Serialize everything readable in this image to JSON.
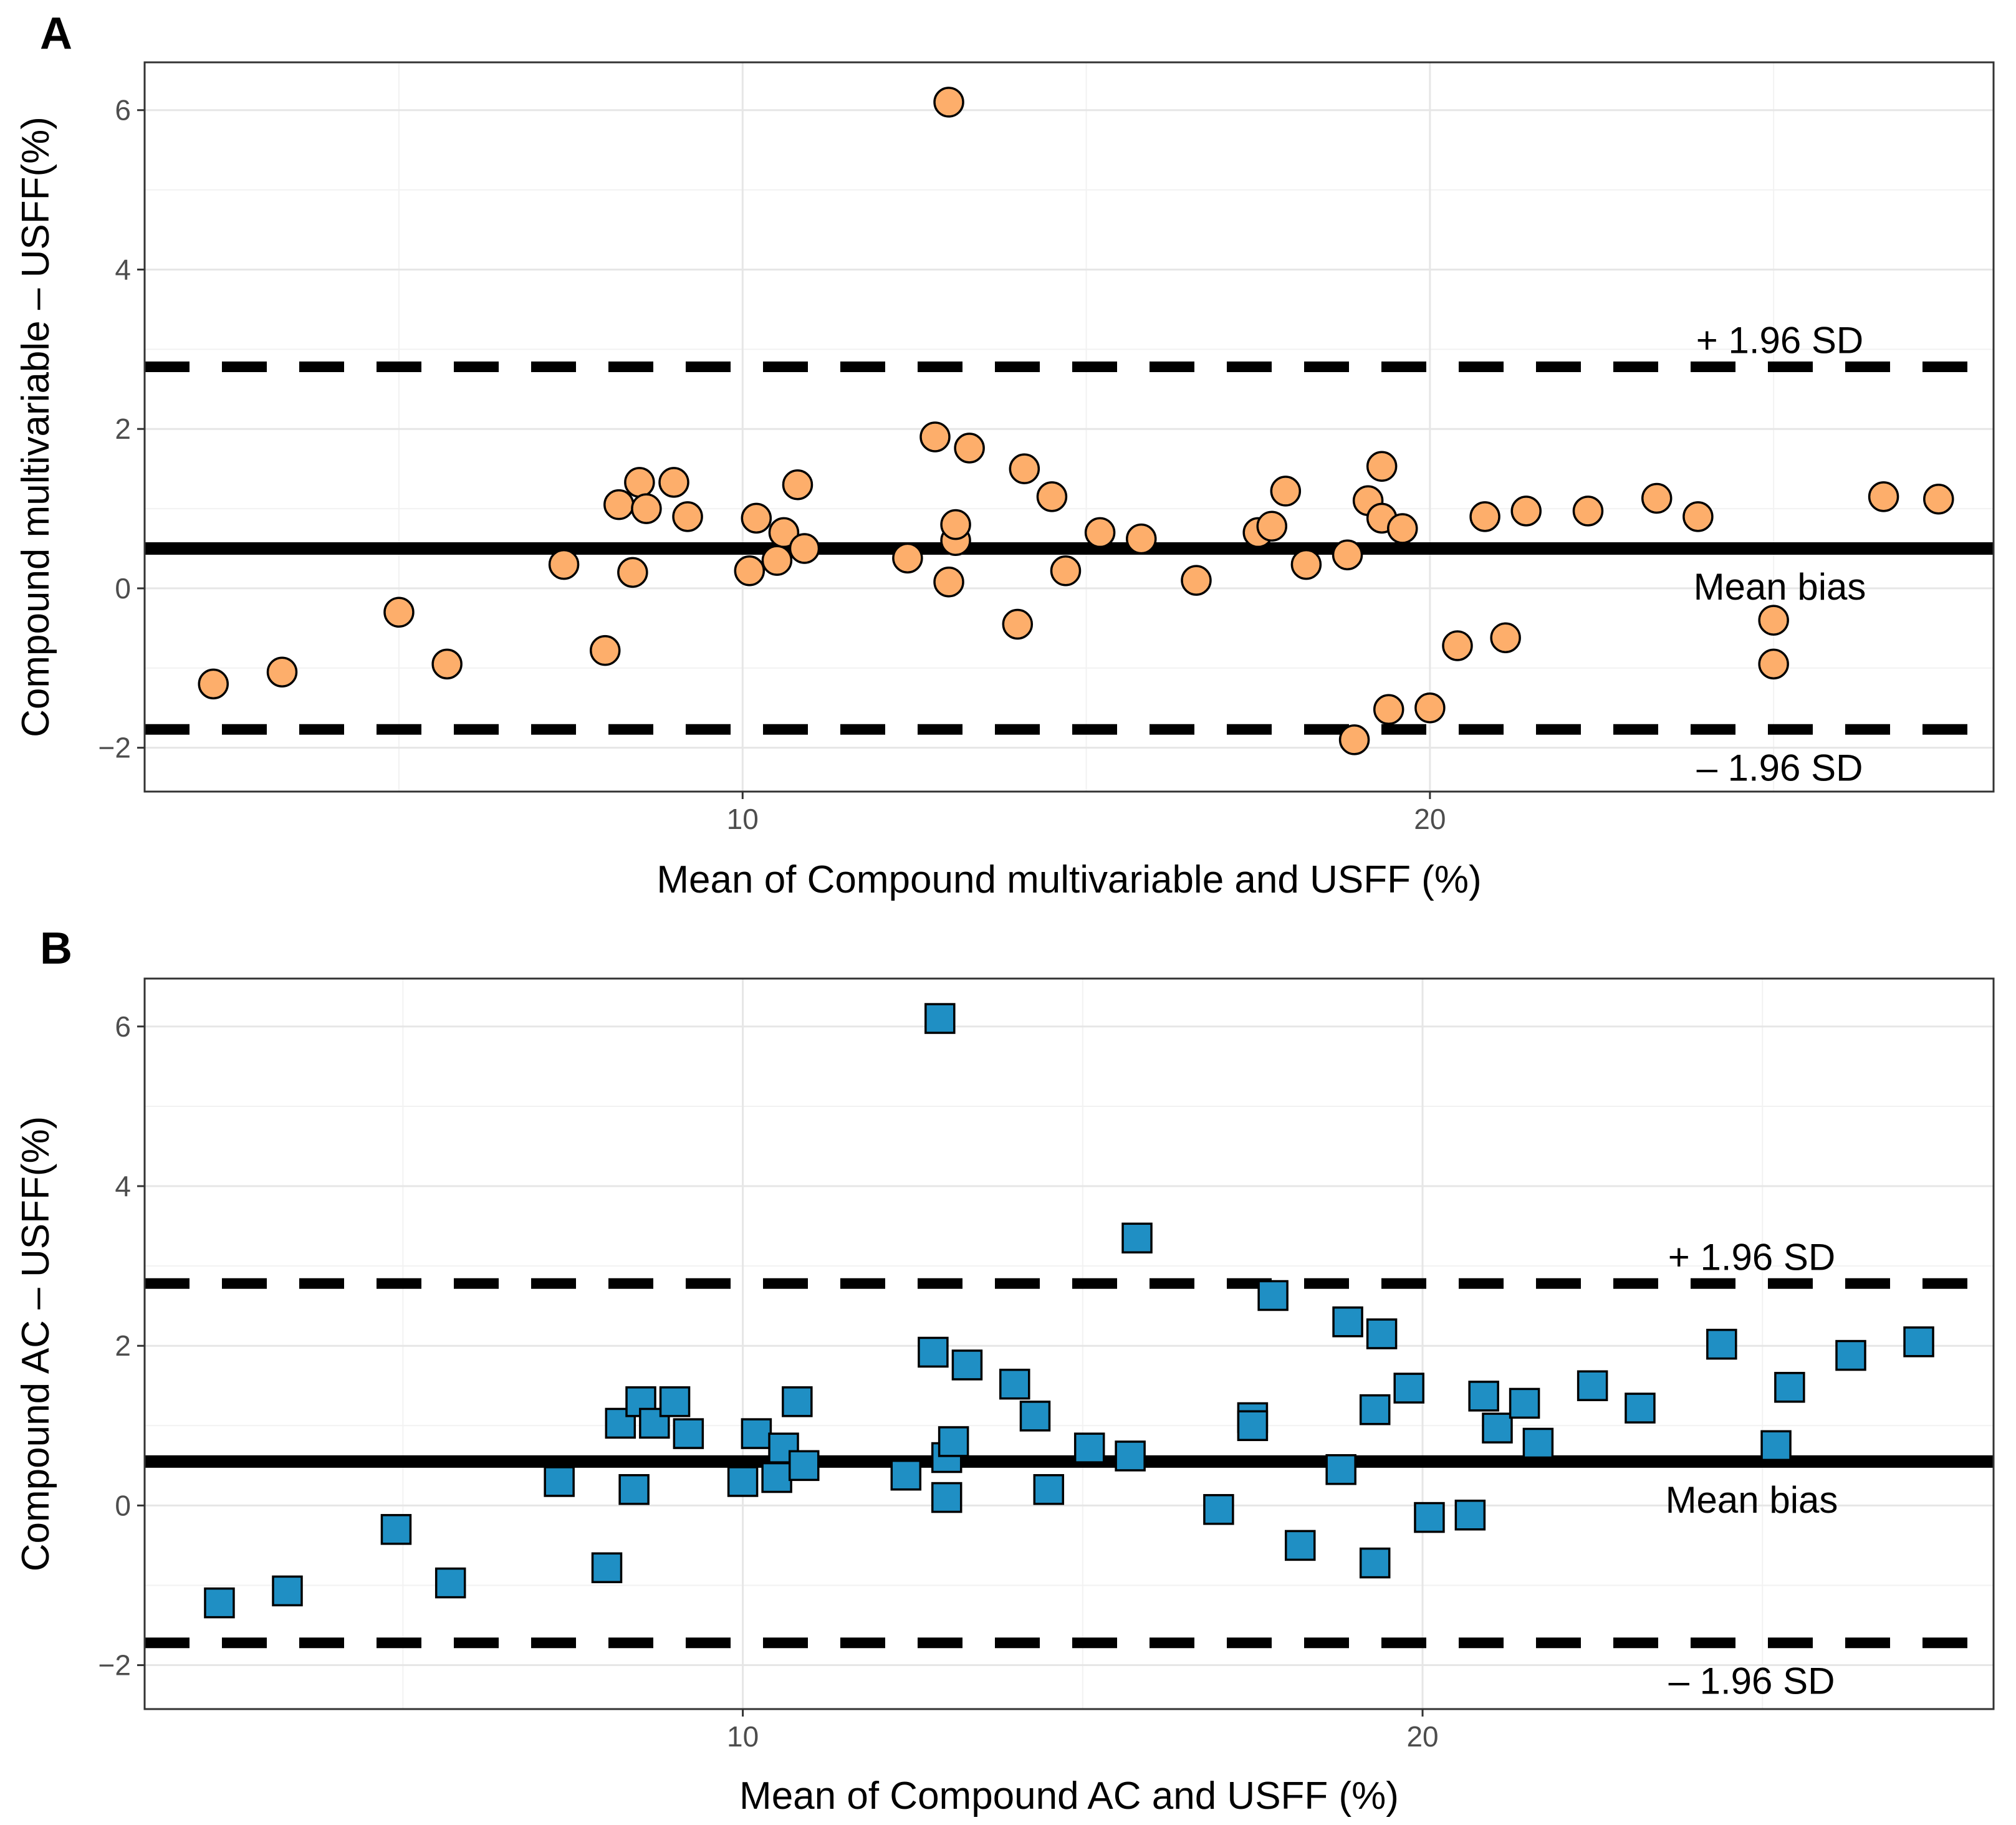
{
  "colors": {
    "panel_a_points": "#FDAE6B",
    "panel_b_points": "#1F8FC4",
    "lines": "#000000"
  },
  "chart_data": [
    {
      "type": "scatter",
      "panel_label": "A",
      "marker": "circle",
      "xlabel": "Mean of Compound multivariable and USFF (%)",
      "ylabel": "Compound multivariable – USFF(%)",
      "xlim": [
        1.3,
        28.2
      ],
      "ylim": [
        -2.55,
        6.6
      ],
      "x_ticks": [
        10,
        20
      ],
      "y_ticks": [
        -2,
        0,
        2,
        4,
        6
      ],
      "x_tick_labels": [
        "10",
        "20"
      ],
      "y_tick_labels": [
        "−2",
        "0",
        "2",
        "4",
        "6"
      ],
      "mean_bias": 0.5,
      "upper_loa": 2.78,
      "lower_loa": -1.77,
      "annotations": {
        "upper": "+ 1.96 SD",
        "mean": "Mean bias",
        "lower": "– 1.96 SD"
      },
      "points": [
        [
          2.3,
          -1.2
        ],
        [
          3.3,
          -1.05
        ],
        [
          5.0,
          -0.3
        ],
        [
          5.7,
          -0.95
        ],
        [
          7.4,
          0.3
        ],
        [
          8.0,
          -0.78
        ],
        [
          8.2,
          1.05
        ],
        [
          8.4,
          0.2
        ],
        [
          8.5,
          1.33
        ],
        [
          8.6,
          1.0
        ],
        [
          9.0,
          1.33
        ],
        [
          9.2,
          0.9
        ],
        [
          10.1,
          0.22
        ],
        [
          10.2,
          0.88
        ],
        [
          10.5,
          0.35
        ],
        [
          10.6,
          0.7
        ],
        [
          10.8,
          1.3
        ],
        [
          10.9,
          0.5
        ],
        [
          12.4,
          0.38
        ],
        [
          12.8,
          1.9
        ],
        [
          13.0,
          0.08
        ],
        [
          13.0,
          6.1
        ],
        [
          13.1,
          0.6
        ],
        [
          13.1,
          0.8
        ],
        [
          13.3,
          1.76
        ],
        [
          14.0,
          -0.45
        ],
        [
          14.1,
          1.5
        ],
        [
          14.5,
          1.15
        ],
        [
          14.7,
          0.22
        ],
        [
          15.2,
          0.7
        ],
        [
          15.8,
          0.62
        ],
        [
          16.6,
          0.1
        ],
        [
          17.5,
          0.7
        ],
        [
          17.7,
          0.78
        ],
        [
          17.9,
          1.22
        ],
        [
          18.2,
          0.3
        ],
        [
          18.8,
          0.42
        ],
        [
          18.9,
          -1.9
        ],
        [
          19.1,
          1.1
        ],
        [
          19.3,
          1.53
        ],
        [
          19.3,
          0.88
        ],
        [
          19.4,
          -1.52
        ],
        [
          19.6,
          0.75
        ],
        [
          20.0,
          -1.5
        ],
        [
          20.4,
          -0.72
        ],
        [
          20.8,
          0.9
        ],
        [
          21.1,
          -0.62
        ],
        [
          21.4,
          0.97
        ],
        [
          22.3,
          0.97
        ],
        [
          23.3,
          1.13
        ],
        [
          23.9,
          0.9
        ],
        [
          25.0,
          -0.4
        ],
        [
          25.0,
          -0.95
        ],
        [
          26.6,
          1.15
        ],
        [
          27.4,
          1.12
        ]
      ]
    },
    {
      "type": "scatter",
      "panel_label": "B",
      "marker": "square",
      "xlabel": "Mean of Compound AC and USFF (%)",
      "ylabel": "Compound AC – USFF(%)",
      "xlim": [
        1.2,
        28.4
      ],
      "ylim": [
        -2.55,
        6.6
      ],
      "x_ticks": [
        10,
        20
      ],
      "y_ticks": [
        -2,
        0,
        2,
        4,
        6
      ],
      "x_tick_labels": [
        "10",
        "20"
      ],
      "y_tick_labels": [
        "−2",
        "0",
        "2",
        "4",
        "6"
      ],
      "mean_bias": 0.55,
      "upper_loa": 2.78,
      "lower_loa": -1.72,
      "annotations": {
        "upper": "+ 1.96 SD",
        "mean": "Mean bias",
        "lower": "– 1.96 SD"
      },
      "points": [
        [
          2.3,
          -1.22
        ],
        [
          3.3,
          -1.07
        ],
        [
          4.9,
          -0.3
        ],
        [
          5.7,
          -0.97
        ],
        [
          7.3,
          0.3
        ],
        [
          8.0,
          -0.78
        ],
        [
          8.2,
          1.03
        ],
        [
          8.4,
          0.2
        ],
        [
          8.5,
          1.3
        ],
        [
          8.7,
          1.03
        ],
        [
          9.0,
          1.3
        ],
        [
          9.2,
          0.9
        ],
        [
          10.0,
          0.3
        ],
        [
          10.2,
          0.9
        ],
        [
          10.5,
          0.35
        ],
        [
          10.6,
          0.72
        ],
        [
          10.8,
          1.3
        ],
        [
          10.9,
          0.5
        ],
        [
          12.4,
          0.38
        ],
        [
          12.8,
          1.92
        ],
        [
          13.0,
          0.1
        ],
        [
          12.9,
          6.1
        ],
        [
          13.0,
          0.6
        ],
        [
          13.1,
          0.8
        ],
        [
          13.3,
          1.76
        ],
        [
          14.0,
          1.52
        ],
        [
          14.3,
          1.12
        ],
        [
          14.5,
          0.2
        ],
        [
          15.1,
          0.72
        ],
        [
          15.7,
          0.62
        ],
        [
          15.8,
          3.35
        ],
        [
          17.0,
          -0.05
        ],
        [
          17.5,
          1.1
        ],
        [
          17.5,
          1.0
        ],
        [
          17.8,
          2.63
        ],
        [
          18.2,
          -0.5
        ],
        [
          18.8,
          0.45
        ],
        [
          18.9,
          2.3
        ],
        [
          19.3,
          1.2
        ],
        [
          19.3,
          -0.72
        ],
        [
          19.4,
          2.15
        ],
        [
          19.8,
          1.47
        ],
        [
          20.1,
          -0.15
        ],
        [
          20.7,
          -0.12
        ],
        [
          20.9,
          1.37
        ],
        [
          21.1,
          0.97
        ],
        [
          21.5,
          1.28
        ],
        [
          21.7,
          0.78
        ],
        [
          22.5,
          1.5
        ],
        [
          23.2,
          1.22
        ],
        [
          24.4,
          2.02
        ],
        [
          25.2,
          0.75
        ],
        [
          25.4,
          1.48
        ],
        [
          26.3,
          1.88
        ],
        [
          27.3,
          2.05
        ]
      ]
    }
  ]
}
